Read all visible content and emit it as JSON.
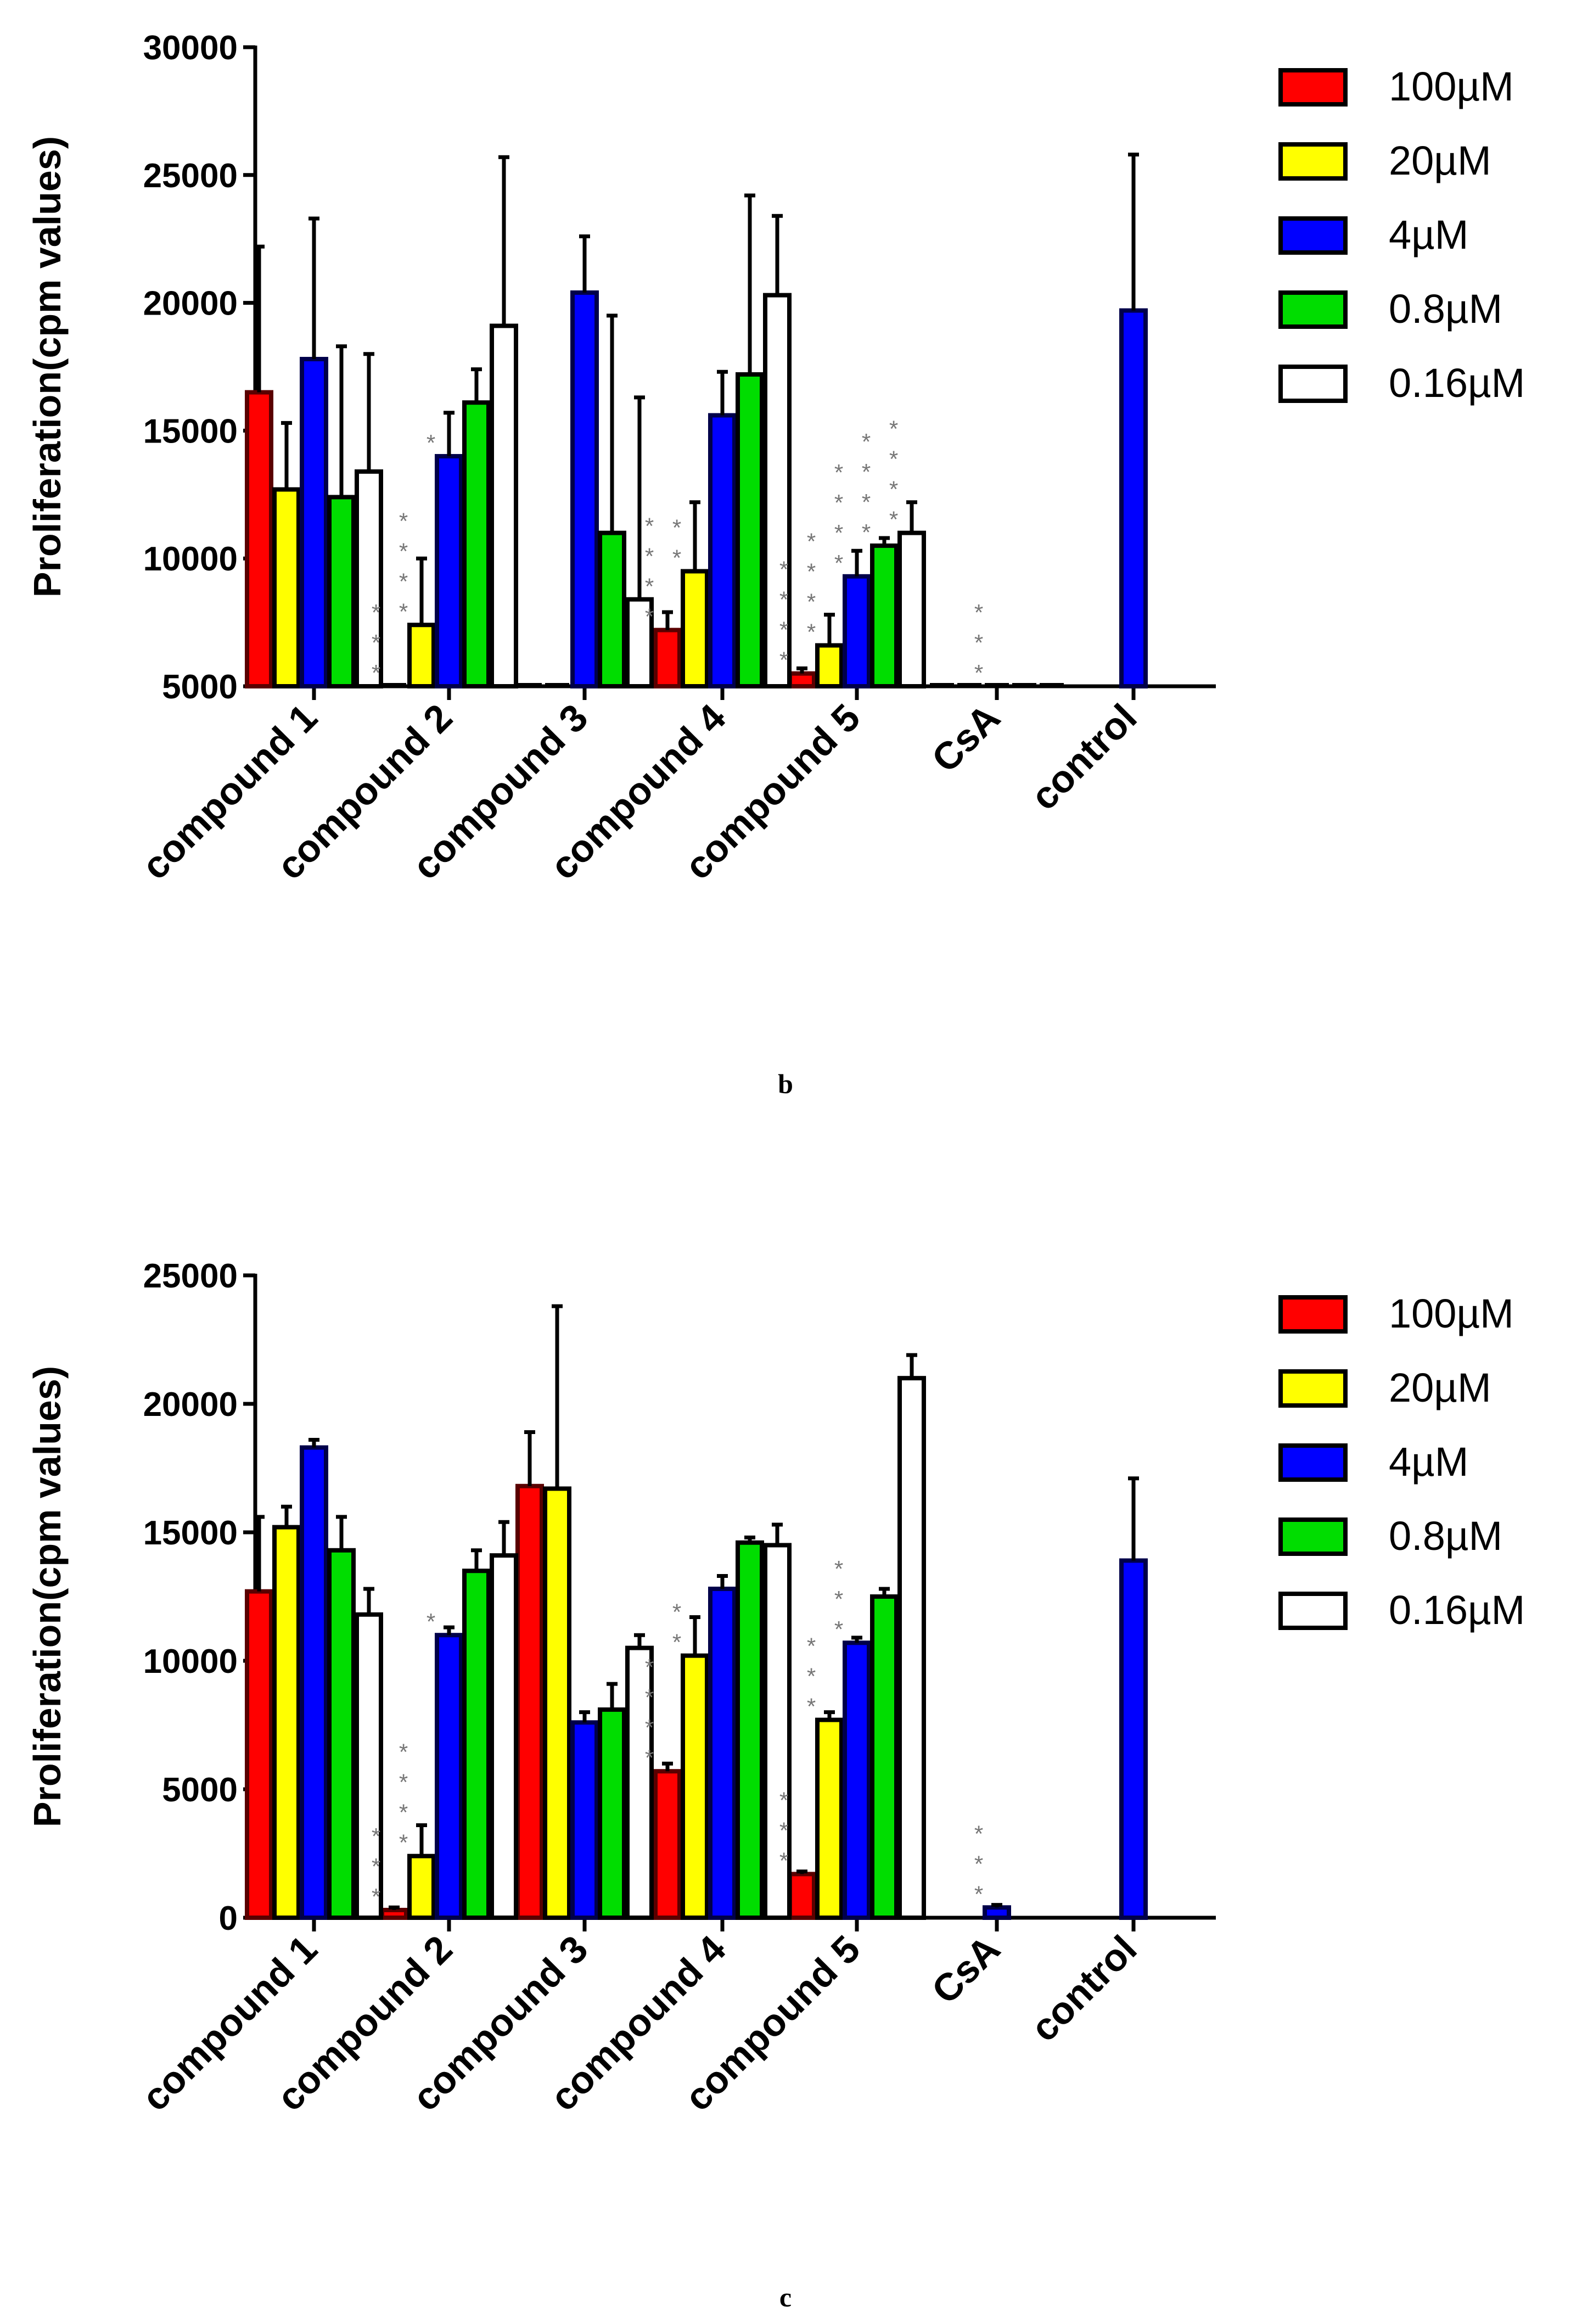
{
  "chart_data": [
    {
      "type": "bar",
      "title": "",
      "xlabel": "",
      "ylabel": "Proliferation(cpm values)",
      "ylim": [
        5000,
        30000
      ],
      "yticks": [
        5000,
        10000,
        15000,
        20000,
        25000,
        30000
      ],
      "categories": [
        "compound 1",
        "compound 2",
        "compound 3",
        "compound 4",
        "compound 5",
        "CsA",
        "control"
      ],
      "series": [
        {
          "name": "100µM",
          "color": "#ff0000",
          "values": [
            16500,
            5000,
            5000,
            7200,
            5500,
            5000,
            null
          ],
          "errors": [
            5700,
            0,
            0,
            700,
            200,
            0,
            null
          ]
        },
        {
          "name": "20µM",
          "color": "#ffff00",
          "values": [
            12700,
            7400,
            5000,
            9500,
            6600,
            5000,
            null
          ],
          "errors": [
            2600,
            2600,
            0,
            2700,
            1200,
            0,
            null
          ]
        },
        {
          "name": "4µM",
          "color": "#0000ff",
          "values": [
            17800,
            14000,
            20400,
            15600,
            9300,
            5000,
            19700
          ],
          "errors": [
            5500,
            1700,
            2200,
            1700,
            1000,
            0,
            6100
          ]
        },
        {
          "name": "0.8µM",
          "color": "#00dd00",
          "values": [
            12400,
            16100,
            11000,
            17200,
            10500,
            5000,
            null
          ],
          "errors": [
            5900,
            1300,
            8500,
            7000,
            300,
            0,
            null
          ]
        },
        {
          "name": "0.16µM",
          "color": "#ffffff",
          "values": [
            13400,
            19100,
            8400,
            20300,
            11000,
            5000,
            null
          ],
          "errors": [
            4600,
            6600,
            7900,
            3100,
            1200,
            0,
            null
          ]
        }
      ],
      "significance": [
        {
          "category": "compound 2",
          "series": "100µM",
          "label": "***"
        },
        {
          "category": "compound 2",
          "series": "20µM",
          "label": "****"
        },
        {
          "category": "compound 2",
          "series": "4µM",
          "label": "*"
        },
        {
          "category": "compound 4",
          "series": "100µM",
          "label": "****"
        },
        {
          "category": "compound 4",
          "series": "20µM",
          "label": "**"
        },
        {
          "category": "compound 5",
          "series": "100µM",
          "label": "****"
        },
        {
          "category": "compound 5",
          "series": "20µM",
          "label": "****"
        },
        {
          "category": "compound 5",
          "series": "4µM",
          "label": "****"
        },
        {
          "category": "compound 5",
          "series": "0.8µM",
          "label": "****"
        },
        {
          "category": "compound 5",
          "series": "0.16µM",
          "label": "****"
        },
        {
          "category": "CsA",
          "series": "4µM",
          "label": "***"
        }
      ],
      "legend": "right",
      "panel_label": "b"
    },
    {
      "type": "bar",
      "title": "",
      "xlabel": "",
      "ylabel": "Proliferation(cpm values)",
      "ylim": [
        0,
        25000
      ],
      "yticks": [
        0,
        5000,
        10000,
        15000,
        20000,
        25000
      ],
      "categories": [
        "compound 1",
        "compound 2",
        "compound 3",
        "compound 4",
        "compound 5",
        "CsA",
        "control"
      ],
      "series": [
        {
          "name": "100µM",
          "color": "#ff0000",
          "values": [
            12700,
            300,
            16800,
            5700,
            1700,
            null,
            null
          ],
          "errors": [
            2900,
            100,
            2100,
            300,
            100,
            null,
            null
          ]
        },
        {
          "name": "20µM",
          "color": "#ffff00",
          "values": [
            15200,
            2400,
            16700,
            10200,
            7700,
            null,
            null
          ],
          "errors": [
            800,
            1200,
            7100,
            1500,
            300,
            null,
            null
          ]
        },
        {
          "name": "4µM",
          "color": "#0000ff",
          "values": [
            18300,
            11000,
            7600,
            12800,
            10700,
            400,
            13900
          ],
          "errors": [
            300,
            300,
            400,
            500,
            200,
            100,
            3200
          ]
        },
        {
          "name": "0.8µM",
          "color": "#00dd00",
          "values": [
            14300,
            13500,
            8100,
            14600,
            12500,
            null,
            null
          ],
          "errors": [
            1300,
            800,
            1000,
            200,
            300,
            null,
            null
          ]
        },
        {
          "name": "0.16µM",
          "color": "#ffffff",
          "values": [
            11800,
            14100,
            10500,
            14500,
            21000,
            null,
            null
          ],
          "errors": [
            1000,
            1300,
            500,
            800,
            900,
            null,
            null
          ]
        }
      ],
      "significance": [
        {
          "category": "compound 2",
          "series": "100µM",
          "label": "***"
        },
        {
          "category": "compound 2",
          "series": "20µM",
          "label": "****"
        },
        {
          "category": "compound 2",
          "series": "4µM",
          "label": "*"
        },
        {
          "category": "compound 4",
          "series": "100µM",
          "label": "****"
        },
        {
          "category": "compound 4",
          "series": "20µM",
          "label": "**"
        },
        {
          "category": "compound 5",
          "series": "100µM",
          "label": "***"
        },
        {
          "category": "compound 5",
          "series": "20µM",
          "label": "***"
        },
        {
          "category": "compound 5",
          "series": "4µM",
          "label": "***"
        },
        {
          "category": "CsA",
          "series": "4µM",
          "label": "***"
        }
      ],
      "legend": "right",
      "panel_label": "c"
    }
  ]
}
